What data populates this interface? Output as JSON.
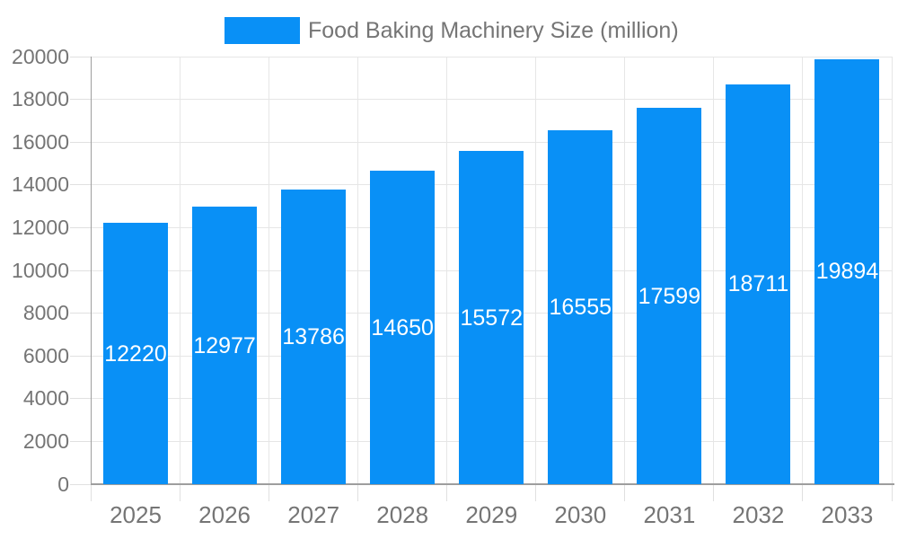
{
  "chart_data": {
    "type": "bar",
    "title": "Food Baking Machinery Size (million)",
    "legend": {
      "label": "Food Baking Machinery Size (million)",
      "position": "top-center"
    },
    "categories": [
      "2025",
      "2026",
      "2027",
      "2028",
      "2029",
      "2030",
      "2031",
      "2032",
      "2033"
    ],
    "series": [
      {
        "name": "Food Baking Machinery Size (million)",
        "values": [
          12220,
          12977,
          13786,
          14650,
          15572,
          16555,
          17599,
          18711,
          19894
        ]
      }
    ],
    "bar_value_labels": [
      "12220",
      "12977",
      "13786",
      "14650",
      "15572",
      "16555",
      "17599",
      "18711",
      "19894"
    ],
    "xlabel": "",
    "ylabel": "",
    "ylim": [
      0,
      20000
    ],
    "ytick_step": 2000,
    "yticks": [
      0,
      2000,
      4000,
      6000,
      8000,
      10000,
      12000,
      14000,
      16000,
      18000,
      20000
    ],
    "grid": true,
    "colors": {
      "bar": "#0990f6",
      "bar_label_text": "#ffffff",
      "axis_text": "#757575",
      "gridline": "#e6e6e6",
      "tick": "#e0e0e0",
      "axis_line": "#9e9e9e",
      "background": "#ffffff"
    }
  }
}
